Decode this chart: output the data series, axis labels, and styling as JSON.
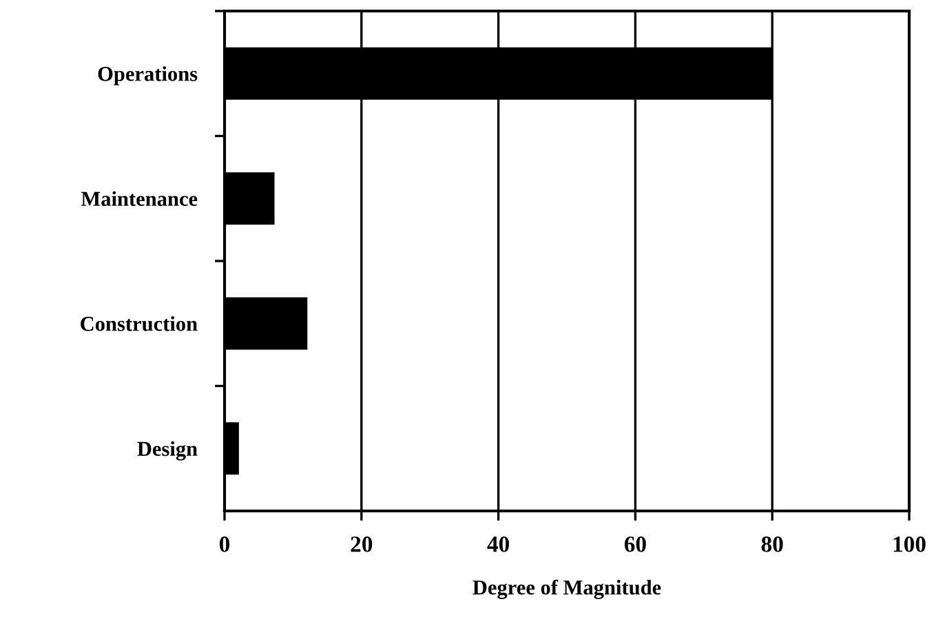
{
  "chart_data": {
    "type": "bar",
    "orientation": "horizontal",
    "xlabel": "Degree of Magnitude",
    "categories": [
      "Operations",
      "Maintenance",
      "Construction",
      "Design"
    ],
    "values": [
      80,
      7.3,
      12.1,
      2.1
    ],
    "color": "#000000",
    "xlim": [
      0,
      100
    ],
    "xticks": [
      0,
      20,
      40,
      60,
      80,
      100
    ],
    "grid": "x"
  }
}
